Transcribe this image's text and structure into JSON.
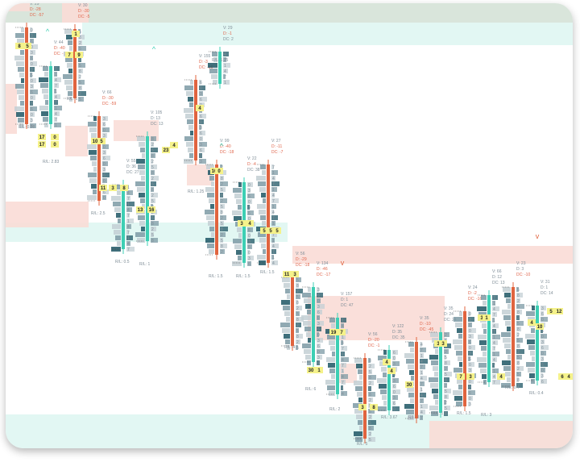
{
  "chart_data": {
    "type": "footprint",
    "colors": {
      "up": "#3dcfb4",
      "down": "#e0643f",
      "zone_up": "#dff6f2",
      "zone_down": "#f9dcd6",
      "top_band": "#d5e2d7",
      "highlight": "#f5f28a",
      "dark_cell": "#1d5664",
      "mid_cell": "#7c9aa4",
      "light_cell": "#c3cfd4"
    },
    "zones": [
      {
        "kind": "top_band"
      },
      {
        "kind": "support"
      },
      {
        "kind": "support"
      },
      {
        "kind": "support"
      },
      {
        "kind": "resistance"
      },
      {
        "kind": "resistance"
      },
      {
        "kind": "resistance"
      },
      {
        "kind": "resistance"
      },
      {
        "kind": "resistance"
      }
    ],
    "bars": [
      {
        "dir": "down",
        "v": "V: 29",
        "d": "D: -28",
        "dc": "DC: -57",
        "rr": "R/L: 0.28"
      },
      {
        "dir": "up",
        "v": "V: 44",
        "d": "D: -40",
        "dc": "DC: -14",
        "rr": "R/L: 2.83"
      },
      {
        "dir": "down",
        "v": "V: 30",
        "d": "D: -30",
        "dc": "DC: -5",
        "rr": "R/L: 1"
      },
      {
        "dir": "down",
        "v": "V: 66",
        "d": "D: -30",
        "dc": "DC: -59",
        "rr": "R/L: 2.5"
      },
      {
        "dir": "up",
        "v": "V: 55",
        "d": "D: 36",
        "dc": "DC: 27",
        "rr": "R/L: 0.5"
      },
      {
        "dir": "up",
        "v": "V: 105",
        "d": "D: 13",
        "dc": "DC: 13",
        "rr": "R/L: 1"
      },
      {
        "dir": "down",
        "v": "V: 155",
        "d": "D: -3",
        "dc": "DC: -16",
        "rr": "R/L: 1.25"
      },
      {
        "dir": "up",
        "v": "V: 29",
        "d": "D: -1",
        "dc": "DC: 2",
        "rr": "R/L: 1.25"
      },
      {
        "dir": "down",
        "v": "V: 99",
        "d": "D: -40",
        "dc": "DC: -18",
        "rr": "R/L: 1.5"
      },
      {
        "dir": "up",
        "v": "V: 22",
        "d": "D: -4",
        "dc": "DC: 38",
        "rr": "R/L: 1.5"
      },
      {
        "dir": "down",
        "v": "V: 27",
        "d": "D: -11",
        "dc": "DC: -7",
        "rr": "R/L: 1.5"
      },
      {
        "dir": "down",
        "v": "V: 56",
        "d": "D: -29",
        "dc": "DC: -18",
        "rr": "R/L: 4"
      },
      {
        "dir": "up",
        "v": "V: 134",
        "d": "D: -46",
        "dc": "DC: -17",
        "rr": "R/L: 6"
      },
      {
        "dir": "up",
        "v": "V: 157",
        "d": "D: 1",
        "dc": "DC: 47",
        "rr": "R/L: 2"
      },
      {
        "dir": "down",
        "v": "V: 56",
        "d": "D: -20",
        "dc": "DC: -1",
        "rr": "R/L: 5"
      },
      {
        "dir": "up",
        "v": "V: 122",
        "d": "D: 35",
        "dc": "DC: 35",
        "rr": "R/L: 3.67"
      },
      {
        "dir": "down",
        "v": "V: 35",
        "d": "D: -10",
        "dc": "DC: -45",
        "rr": "R/L: 3"
      },
      {
        "dir": "up",
        "v": "V: 35",
        "d": "D: 24",
        "dc": "DC: 24",
        "rr": "R/L: 1"
      },
      {
        "dir": "down",
        "v": "V: 24",
        "d": "D: -2",
        "dc": "DC: -16",
        "rr": "R/L: 1.5"
      },
      {
        "dir": "up",
        "v": "V: 66",
        "d": "D: 12",
        "dc": "DC: 13",
        "rr": "R/L: 3"
      },
      {
        "dir": "down",
        "v": "V: 23",
        "d": "D: 3",
        "dc": "DC: -10",
        "rr": "R/L: 0.4"
      },
      {
        "dir": "up",
        "v": "V: 31",
        "d": "D: 1",
        "dc": "DC: 14",
        "rr": "R/L: 0.4"
      }
    ],
    "highlight_values": [
      "8",
      "5",
      "7",
      "9",
      "1",
      "17",
      "0",
      "17",
      "0",
      "10",
      "5",
      "11",
      "3",
      "8",
      "13",
      "16",
      "23",
      "4",
      "4",
      "10",
      "0",
      "3",
      "4",
      "5",
      "5",
      "5",
      "11",
      "3",
      "19",
      "7",
      "30",
      "1",
      "3",
      "8",
      "4",
      "4",
      "30",
      "3",
      "3",
      "7",
      "3",
      "3",
      "1",
      "4",
      "4",
      "10",
      "5",
      "12",
      "6",
      "4"
    ],
    "markers": [
      "^",
      "^",
      "^",
      "v",
      "v"
    ]
  }
}
